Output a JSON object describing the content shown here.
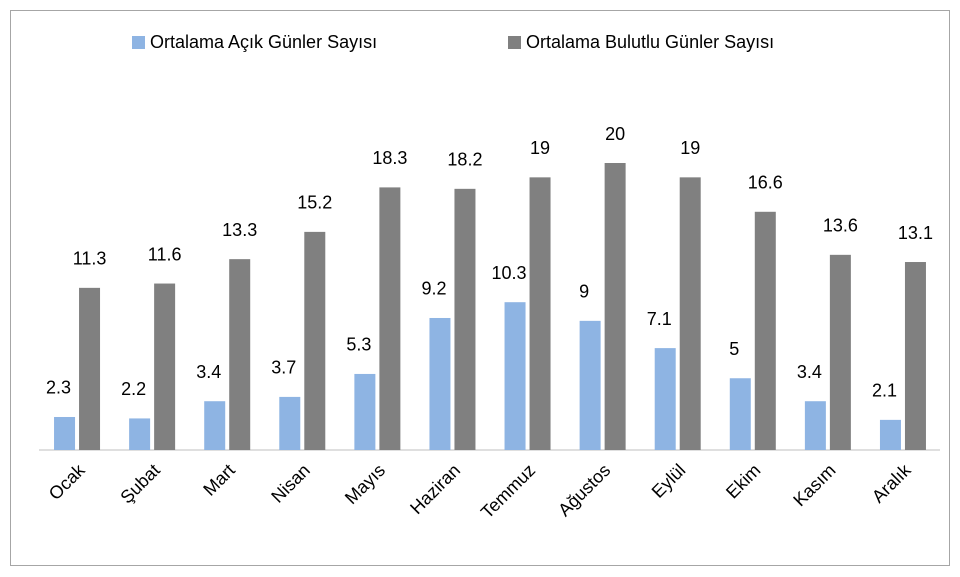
{
  "chart_data": {
    "type": "bar",
    "categories": [
      "Ocak",
      "Şubat",
      "Mart",
      "Nisan",
      "Mayıs",
      "Haziran",
      "Temmuz",
      "Ağustos",
      "Eylül",
      "Ekim",
      "Kasım",
      "Aralık"
    ],
    "series": [
      {
        "name": "Ortalama Açık Günler Sayısı",
        "color": "#8eb4e3",
        "values": [
          2.3,
          2.2,
          3.4,
          3.7,
          5.3,
          9.2,
          10.3,
          9,
          7.1,
          5,
          3.4,
          2.1
        ]
      },
      {
        "name": "Ortalama Bulutlu Günler Sayısı",
        "color": "#808080",
        "values": [
          11.3,
          11.6,
          13.3,
          15.2,
          18.3,
          18.2,
          19,
          20,
          19,
          16.6,
          13.6,
          13.1
        ]
      }
    ],
    "legend": "top"
  }
}
